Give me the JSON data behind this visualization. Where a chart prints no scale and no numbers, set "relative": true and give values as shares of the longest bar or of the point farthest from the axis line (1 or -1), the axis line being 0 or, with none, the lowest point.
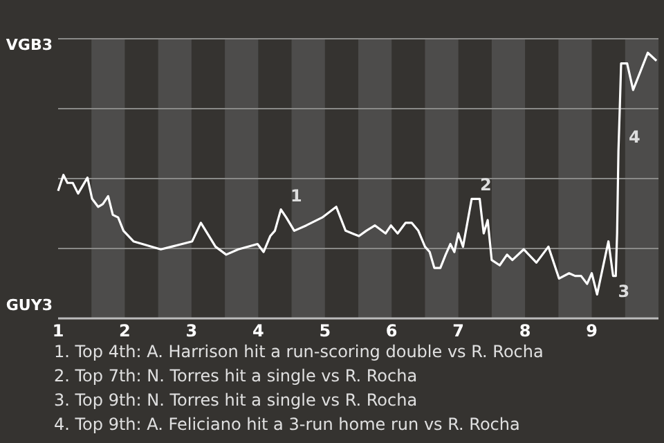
{
  "chart_data": {
    "type": "line",
    "relative": true,
    "xlim": [
      1,
      10
    ],
    "xticks": [
      1,
      2,
      3,
      4,
      5,
      6,
      7,
      8,
      9
    ],
    "grid": true,
    "marker": "none",
    "line_style": "solid",
    "series": [
      {
        "color": "#ffffff",
        "x": [
          1.0,
          1.08,
          1.14,
          1.22,
          1.3,
          1.44,
          1.51,
          1.6,
          1.67,
          1.75,
          1.82,
          1.9,
          1.98,
          2.13,
          2.54,
          2.7,
          3.01,
          3.14,
          3.36,
          3.52,
          3.7,
          3.99,
          4.08,
          4.18,
          4.25,
          4.34,
          4.42,
          4.54,
          4.72,
          4.96,
          5.17,
          5.31,
          5.51,
          5.62,
          5.75,
          5.91,
          5.99,
          6.09,
          6.21,
          6.3,
          6.4,
          6.5,
          6.57,
          6.64,
          6.73,
          6.81,
          6.88,
          6.94,
          7.0,
          7.07,
          7.2,
          7.32,
          7.38,
          7.44,
          7.5,
          7.62,
          7.73,
          7.81,
          7.98,
          8.17,
          8.35,
          8.51,
          8.66,
          8.75,
          8.84,
          8.93,
          9.0,
          9.08,
          9.25,
          9.32,
          9.36,
          9.38,
          9.4,
          9.42,
          9.44,
          9.53,
          9.62,
          9.73,
          9.84,
          9.97
        ],
        "values": [
          0.48,
          0.54,
          0.51,
          0.51,
          0.47,
          0.53,
          0.45,
          0.42,
          0.43,
          0.46,
          0.39,
          0.38,
          0.33,
          0.29,
          0.26,
          0.27,
          0.29,
          0.36,
          0.27,
          0.24,
          0.26,
          0.28,
          0.25,
          0.31,
          0.33,
          0.41,
          0.38,
          0.33,
          0.35,
          0.38,
          0.42,
          0.33,
          0.31,
          0.33,
          0.35,
          0.32,
          0.35,
          0.32,
          0.36,
          0.36,
          0.33,
          0.27,
          0.25,
          0.19,
          0.19,
          0.24,
          0.28,
          0.25,
          0.32,
          0.27,
          0.45,
          0.45,
          0.32,
          0.37,
          0.22,
          0.2,
          0.24,
          0.22,
          0.26,
          0.21,
          0.27,
          0.15,
          0.17,
          0.16,
          0.16,
          0.13,
          0.17,
          0.09,
          0.29,
          0.16,
          0.16,
          0.32,
          0.63,
          0.79,
          0.96,
          0.96,
          0.86,
          0.93,
          1,
          0.97
        ]
      }
    ],
    "bands": [
      {
        "axis": "x",
        "from": 1.5,
        "to": 2,
        "color": "#4d4c4b"
      },
      {
        "axis": "x",
        "from": 2.5,
        "to": 3,
        "color": "#4d4c4b"
      },
      {
        "axis": "x",
        "from": 3.5,
        "to": 4,
        "color": "#4d4c4b"
      },
      {
        "axis": "x",
        "from": 4.5,
        "to": 5,
        "color": "#4d4c4b"
      },
      {
        "axis": "x",
        "from": 5.5,
        "to": 6,
        "color": "#4d4c4b"
      },
      {
        "axis": "x",
        "from": 6.5,
        "to": 7,
        "color": "#4d4c4b"
      },
      {
        "axis": "x",
        "from": 7.5,
        "to": 8,
        "color": "#4d4c4b"
      },
      {
        "axis": "x",
        "from": 8.5,
        "to": 9,
        "color": "#4d4c4b"
      },
      {
        "axis": "x",
        "from": 9.5,
        "to": 10,
        "color": "#4d4c4b"
      }
    ],
    "annotations": [
      {
        "text": "1",
        "x": 4.38,
        "y": 0.41
      },
      {
        "text": "2",
        "x": 7.22,
        "y": 0.45
      },
      {
        "text": "3",
        "x": 9.29,
        "y": 0.16
      },
      {
        "text": "4",
        "x": 9.45,
        "y": 0.63
      },
      "VGB3",
      "GUY3",
      "1. Top 4th: A. Harrison hit a run-scoring double vs R. Rocha",
      "2. Top 7th: N. Torres hit a single vs R. Rocha",
      "3. Top 9th: N. Torres hit a single vs R. Rocha",
      "4. Top 9th: A. Feliciano hit a 3-run home run vs R. Rocha"
    ]
  }
}
